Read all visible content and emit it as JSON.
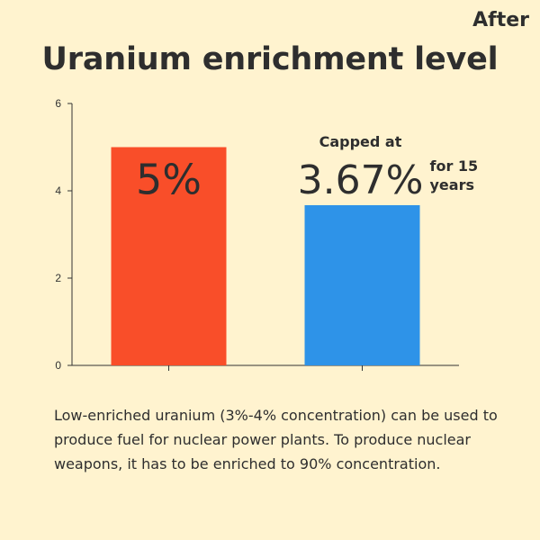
{
  "header": {
    "corner_label": "After",
    "title": "Uranium enrichment level"
  },
  "chart_data": {
    "type": "bar",
    "title": "Uranium enrichment level",
    "xlabel": "",
    "ylabel": "",
    "categories": [
      "",
      ""
    ],
    "values": [
      5,
      3.67
    ],
    "colors": [
      "#F94E29",
      "#2E93E8"
    ],
    "ylim": [
      0,
      6
    ],
    "yticks": [
      0,
      2,
      4,
      6
    ],
    "grid": false,
    "data_labels": [
      "5%",
      "3.67%"
    ],
    "annotations": [
      {
        "bar_index": 1,
        "above": "Capped at",
        "side": "for 15 years"
      }
    ]
  },
  "caption": {
    "text": "Low-enriched uranium (3%-4% concentration) can be used to produce fuel for nuclear power plants. To produce nuclear weapons, it has to be enriched to 90% concentration."
  }
}
